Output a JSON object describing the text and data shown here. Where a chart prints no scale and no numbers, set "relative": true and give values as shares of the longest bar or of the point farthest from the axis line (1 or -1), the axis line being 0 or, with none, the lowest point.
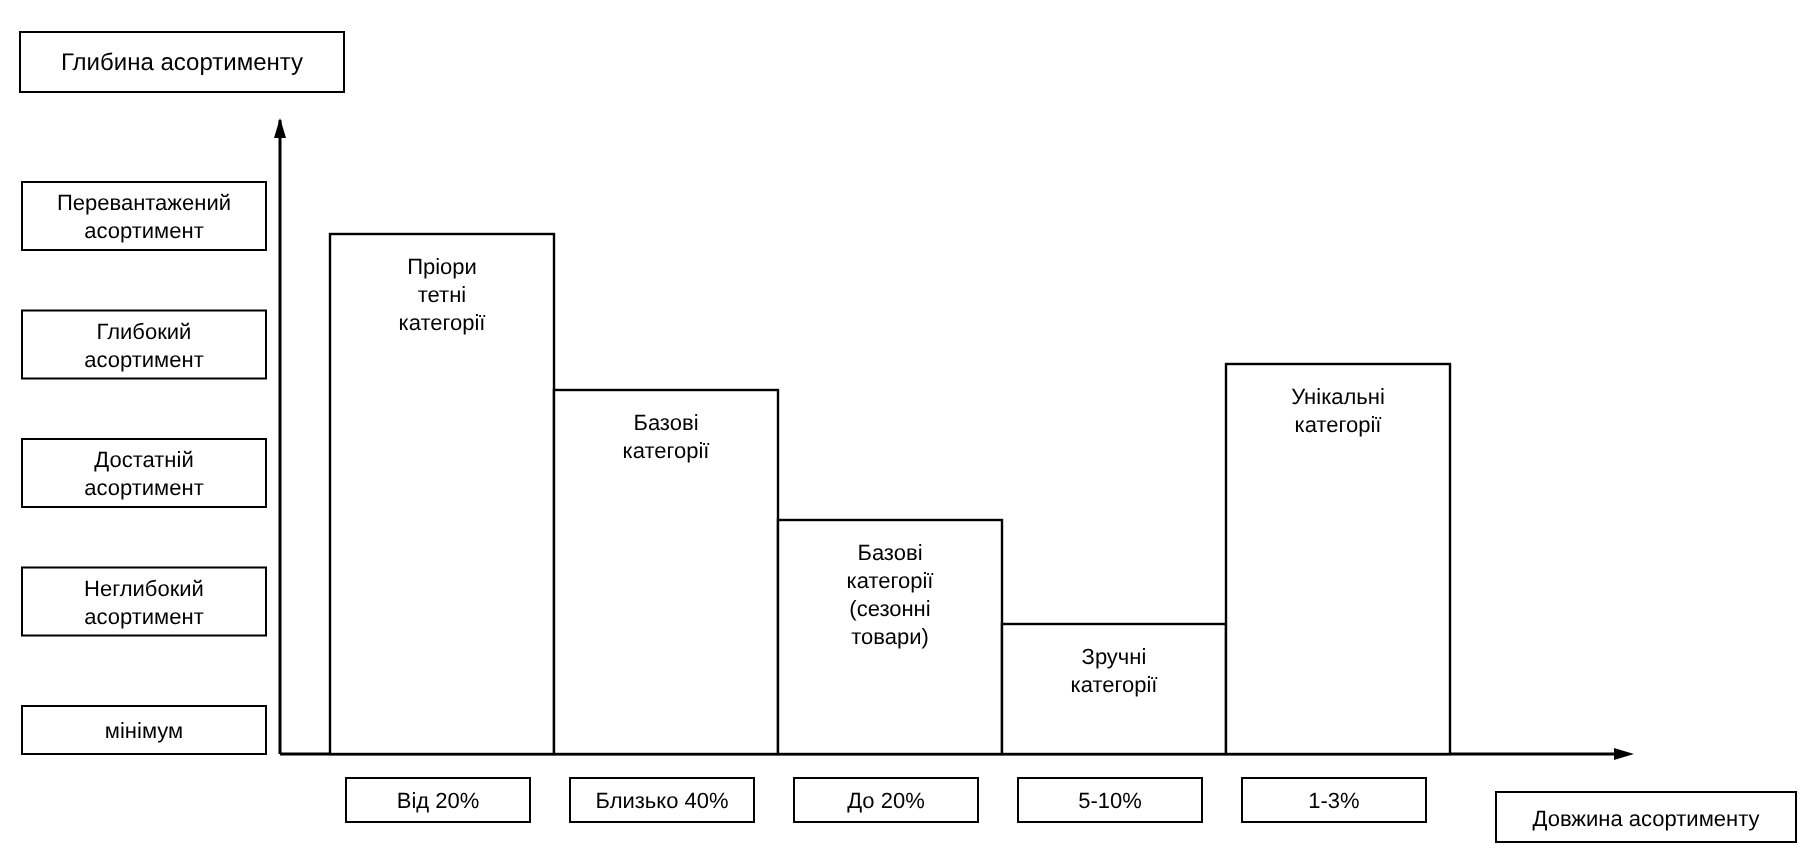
{
  "chart_data": {
    "type": "bar",
    "relative": true,
    "xlabel": "Довжина асортименту",
    "categories": [
      "Від 20%",
      "Близько 40%",
      "До 20%",
      "5-10%",
      "1-3%"
    ],
    "series": [
      {
        "color": "#ffffff",
        "values": [
          1,
          0.7,
          0.45,
          0.25,
          0.75
        ]
      }
    ],
    "annotations": [
      "Глибина асортименту",
      "Перевантажений асортимент",
      "Глибокий асортимент",
      "Достатній асортимент",
      "Неглибокий асортимент",
      "мінімум",
      {
        "text": "Пріори тетні категорії",
        "x": "Від 20%",
        "y": 1
      },
      {
        "text": "Базові категорії",
        "x": "Близько 40%",
        "y": 0.7
      },
      {
        "text": "Базові категорії (сезонні товари)",
        "x": "До 20%",
        "y": 0.45
      },
      {
        "text": "Зручні категорії",
        "x": "5-10%",
        "y": 0.25
      },
      {
        "text": "Унікальні категорії",
        "x": "1-3%",
        "y": 0.75
      }
    ]
  }
}
